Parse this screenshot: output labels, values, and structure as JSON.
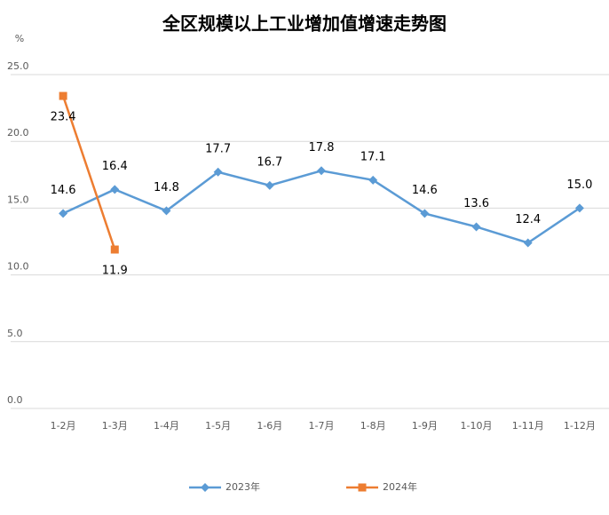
{
  "chart_data": {
    "type": "line",
    "title": "全区规模以上工业增加值增速走势图",
    "y_label": "%",
    "categories": [
      "1-2月",
      "1-3月",
      "1-4月",
      "1-5月",
      "1-6月",
      "1-7月",
      "1-8月",
      "1-9月",
      "1-10月",
      "1-11月",
      "1-12月"
    ],
    "series": [
      {
        "name": "2023年",
        "color": "#5b9bd5",
        "marker": "diamond",
        "values": [
          14.6,
          16.4,
          14.8,
          17.7,
          16.7,
          17.8,
          17.1,
          14.6,
          13.6,
          12.4,
          15.0
        ],
        "value_labels": [
          "14.6",
          "16.4",
          "14.8",
          "17.7",
          "16.7",
          "17.8",
          "17.1",
          "14.6",
          "13.6",
          "12.4",
          "15.0"
        ]
      },
      {
        "name": "2024年",
        "color": "#ed7d31",
        "marker": "square",
        "values": [
          23.4,
          11.9,
          null,
          null,
          null,
          null,
          null,
          null,
          null,
          null,
          null
        ],
        "value_labels": [
          "23.4",
          "11.9",
          null,
          null,
          null,
          null,
          null,
          null,
          null,
          null,
          null
        ]
      }
    ],
    "ylim": [
      0,
      25
    ],
    "yticks": [
      {
        "value": 0,
        "label": "0.0"
      },
      {
        "value": 5,
        "label": "5.0"
      },
      {
        "value": 10,
        "label": "10.0"
      },
      {
        "value": 15,
        "label": "15.0"
      },
      {
        "value": 20,
        "label": "20.0"
      },
      {
        "value": 25,
        "label": "25.0"
      }
    ],
    "grid": true,
    "legend": "bottom"
  }
}
